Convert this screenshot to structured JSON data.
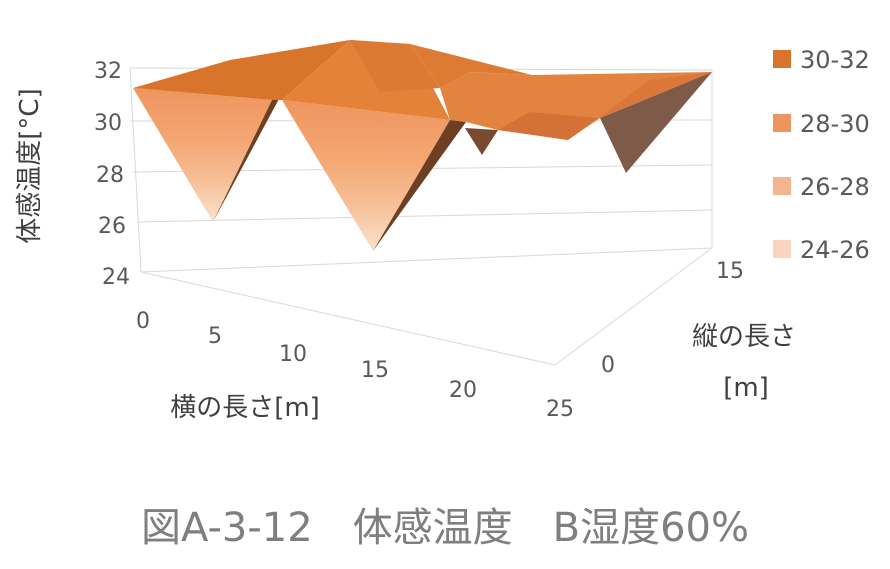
{
  "chart_data": {
    "type": "surface-3d",
    "ylabel": "体感温度[°C]",
    "xlabel": "横の長さ[m]",
    "zlabel_line1": "縦の長さ",
    "zlabel_line2": "[m]",
    "y_ticks": [
      "32",
      "30",
      "28",
      "26",
      "24"
    ],
    "x_ticks": [
      "0",
      "5",
      "10",
      "15",
      "20",
      "25"
    ],
    "z_ticks": [
      "15",
      "0"
    ],
    "ylim": [
      24,
      32
    ],
    "legend": [
      "30-32",
      "28-30",
      "26-28",
      "24-26"
    ],
    "band_colors": [
      "#D9752B",
      "#EE955F",
      "#F4B48C",
      "#F9D4BE"
    ],
    "surface_fill_top": "#E5833A",
    "surface_fill_shadow": "#7A4A30",
    "caption": "図A-3-12　体感温度　B湿度60%"
  }
}
